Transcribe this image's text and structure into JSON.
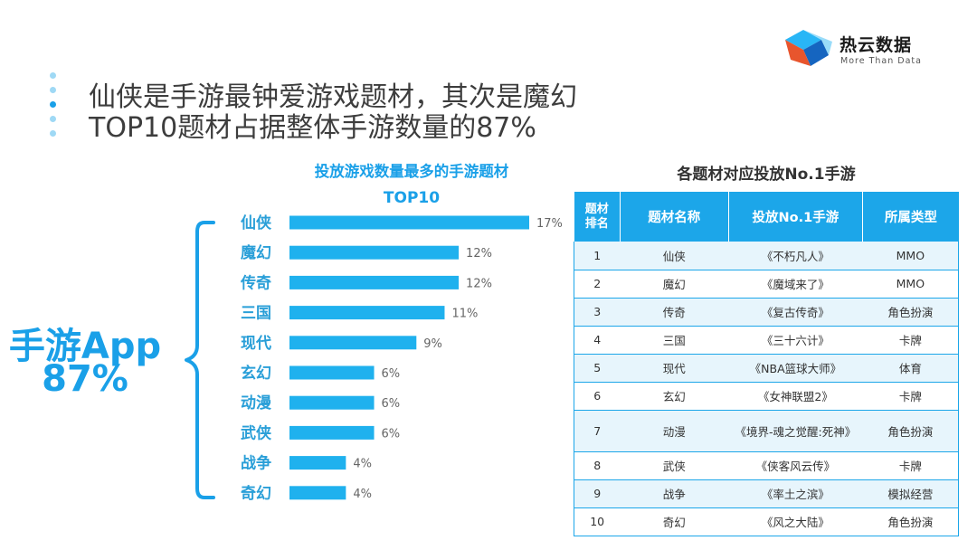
{
  "brand": {
    "name": "热云数据",
    "tagline": "More Than Data"
  },
  "headline": {
    "line1": "仙侠是手游最钟爱游戏题材，其次是魔幻",
    "line2": "TOP10题材占据整体手游数量的87%"
  },
  "summary": {
    "line1": "手游App",
    "line2": "87%"
  },
  "colors": {
    "accent": "#1aa0e8",
    "bar": "#1fb1ee",
    "table_header": "#1ca6e9",
    "table_stripe": "#e7f5fc"
  },
  "chart_data": {
    "type": "bar",
    "orientation": "horizontal",
    "title": "投放游戏数量最多的手游题材",
    "subtitle": "TOP10",
    "categories": [
      "仙侠",
      "魔幻",
      "传奇",
      "三国",
      "现代",
      "玄幻",
      "动漫",
      "武侠",
      "战争",
      "奇幻"
    ],
    "values": [
      17,
      12,
      12,
      11,
      9,
      6,
      6,
      6,
      4,
      4
    ],
    "value_labels": [
      "17%",
      "12%",
      "12%",
      "11%",
      "9%",
      "6%",
      "6%",
      "6%",
      "4%",
      "4%"
    ],
    "unit": "%",
    "grid": false,
    "xlim": [
      0,
      17
    ]
  },
  "table": {
    "title": "各题材对应投放No.1手游",
    "headers": [
      "题材排名",
      "题材名称",
      "投放No.1手游",
      "所属类型"
    ],
    "rows": [
      [
        "1",
        "仙侠",
        "《不朽凡人》",
        "MMO"
      ],
      [
        "2",
        "魔幻",
        "《魔域来了》",
        "MMO"
      ],
      [
        "3",
        "传奇",
        "《复古传奇》",
        "角色扮演"
      ],
      [
        "4",
        "三国",
        "《三十六计》",
        "卡牌"
      ],
      [
        "5",
        "现代",
        "《NBA篮球大师》",
        "体育"
      ],
      [
        "6",
        "玄幻",
        "《女神联盟2》",
        "卡牌"
      ],
      [
        "7",
        "动漫",
        "《境界-魂之觉醒:死神》",
        "角色扮演"
      ],
      [
        "8",
        "武侠",
        "《侠客风云传》",
        "卡牌"
      ],
      [
        "9",
        "战争",
        "《率土之滨》",
        "模拟经营"
      ],
      [
        "10",
        "奇幻",
        "《风之大陆》",
        "角色扮演"
      ]
    ]
  }
}
